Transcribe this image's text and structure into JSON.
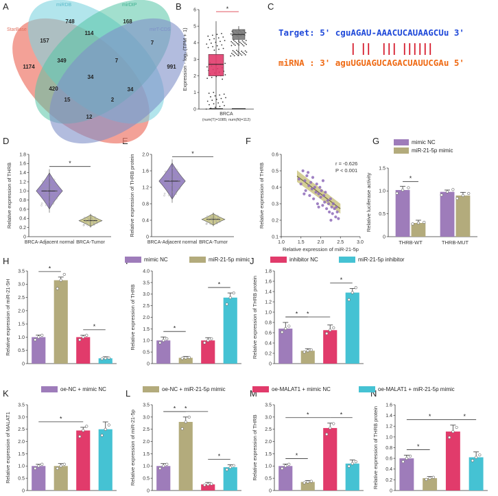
{
  "panels": {
    "A": "A",
    "B": "B",
    "C": "C",
    "D": "D",
    "E": "E",
    "F": "F",
    "G": "G",
    "H": "H",
    "I": "I",
    "J": "J",
    "K": "K",
    "L": "L",
    "M": "M",
    "N": "N"
  },
  "colors": {
    "purple": "#9e7cba",
    "olive": "#b3ab7c",
    "pink": "#e13b6b",
    "cyan": "#45c2d3",
    "venn_red": "#ee7d6f",
    "venn_cyan": "#7fd3e0",
    "venn_teal": "#55c4a6",
    "venn_blue": "#7e8fc8",
    "seq_blue": "#1f49d9",
    "seq_orange": "#ef6a14",
    "seq_red": "#d61b2c"
  },
  "venn": {
    "labels": [
      "StarBase",
      "miRDB",
      "mirDIP",
      "mirT-CDS"
    ],
    "regions": [
      {
        "value": "748"
      },
      {
        "value": "168"
      },
      {
        "value": "1174"
      },
      {
        "value": "991"
      },
      {
        "value": "157"
      },
      {
        "value": "114"
      },
      {
        "value": "7"
      },
      {
        "value": "349"
      },
      {
        "value": "7"
      },
      {
        "value": "34"
      },
      {
        "value": "420"
      },
      {
        "value": "34"
      },
      {
        "value": "15"
      },
      {
        "value": "2"
      },
      {
        "value": "12"
      }
    ]
  },
  "boxplot_B": {
    "ylabel": "Expression - log₂ (TPM + 1)",
    "yticks": [
      "0",
      "1",
      "2",
      "3",
      "4",
      "5",
      "6"
    ],
    "xlabel_1": "BRCA",
    "xlabel_2": "(num(T)=1085; num(N)=112)",
    "star": "*",
    "tumor": {
      "q1": 2.0,
      "median": 2.7,
      "q3": 3.3,
      "min": 0,
      "max": 5.3,
      "color": "#e13b6b"
    },
    "normal": {
      "q1": 4.2,
      "median": 4.5,
      "q3": 4.8,
      "min": 3.2,
      "max": 5.0,
      "color": "#7a7a7a"
    }
  },
  "sequence_C": {
    "target": "Target: 5' cguAGAU-AAACUCAUAAGCUu 3'",
    "mirna": "miRNA : 3' aguUGUAGUCAGACUAUUCGAu 5'"
  },
  "legend_row1": [
    "mimic NC",
    "miR-21-5p mimic",
    "inhibitor NC",
    "miR-21-5p inhibitor"
  ],
  "legend_row2": [
    "oe-NC + mimic NC",
    "oe-NC + miR-21-5p mimic",
    "oe-MALAT1 + mimic NC",
    "oe-MALAT1 + miR-21-5p mimic"
  ],
  "legend_G": [
    "mimic NC",
    "miR-21-5p mimic"
  ],
  "chart_data": [
    {
      "id": "D",
      "type": "violin",
      "ylabel": "Relative expression of THRB",
      "categories": [
        "BRCA-Adjacent normal",
        "BRCA-Tumor"
      ],
      "values": [
        1.0,
        0.35
      ],
      "ylim": [
        0,
        1.8
      ],
      "yticks": [
        "0",
        "0.2",
        "0.4",
        "0.6",
        "0.8",
        "1.0",
        "1.2",
        "1.4",
        "1.6",
        "1.8"
      ],
      "star": "*"
    },
    {
      "id": "E",
      "type": "violin",
      "ylabel": "Relative expression of THRB protein",
      "categories": [
        "BRCA-Adjacent normal",
        "BRCA-Tumor"
      ],
      "values": [
        1.35,
        0.42
      ],
      "ylim": [
        0,
        2.0
      ],
      "yticks": [
        "0",
        "0.4",
        "0.8",
        "1.2",
        "1.6",
        "2.0"
      ],
      "star": "*"
    },
    {
      "id": "F",
      "type": "scatter",
      "ylabel": "Relative expression of THRB",
      "xlabel": "Relative expression of miR-21-5p",
      "xlim": [
        1.0,
        3.0
      ],
      "ylim": [
        0.1,
        0.6
      ],
      "xticks": [
        "1.0",
        "1.5",
        "2.0",
        "2.5",
        "3.0"
      ],
      "yticks": [
        "0.1",
        "0.2",
        "0.3",
        "0.4",
        "0.5",
        "0.6"
      ],
      "r": "r = -0.626",
      "p": "P < 0.001",
      "points": [
        [
          1.45,
          0.45
        ],
        [
          1.5,
          0.42
        ],
        [
          1.55,
          0.5
        ],
        [
          1.6,
          0.44
        ],
        [
          1.62,
          0.38
        ],
        [
          1.65,
          0.47
        ],
        [
          1.7,
          0.41
        ],
        [
          1.72,
          0.35
        ],
        [
          1.75,
          0.43
        ],
        [
          1.78,
          0.39
        ],
        [
          1.8,
          0.46
        ],
        [
          1.82,
          0.33
        ],
        [
          1.85,
          0.4
        ],
        [
          1.88,
          0.37
        ],
        [
          1.9,
          0.42
        ],
        [
          1.92,
          0.3
        ],
        [
          1.95,
          0.36
        ],
        [
          1.98,
          0.4
        ],
        [
          2.0,
          0.34
        ],
        [
          2.02,
          0.38
        ],
        [
          2.05,
          0.29
        ],
        [
          2.08,
          0.35
        ],
        [
          2.1,
          0.31
        ],
        [
          2.12,
          0.37
        ],
        [
          2.15,
          0.27
        ],
        [
          2.18,
          0.32
        ],
        [
          2.2,
          0.3
        ],
        [
          2.22,
          0.25
        ],
        [
          2.25,
          0.33
        ],
        [
          2.28,
          0.28
        ],
        [
          2.3,
          0.24
        ],
        [
          2.32,
          0.3
        ],
        [
          2.35,
          0.27
        ],
        [
          2.38,
          0.22
        ],
        [
          2.4,
          0.28
        ],
        [
          2.42,
          0.25
        ],
        [
          2.45,
          0.21
        ],
        [
          1.58,
          0.36
        ],
        [
          1.68,
          0.49
        ],
        [
          2.06,
          0.44
        ],
        [
          1.95,
          0.28
        ],
        [
          2.26,
          0.2
        ]
      ]
    },
    {
      "id": "G",
      "type": "bar",
      "ylabel": "Relative luciferase activity",
      "categories": [
        "THRB-WT",
        "THRB-MUT"
      ],
      "ylim": [
        0,
        1.5
      ],
      "yticks": [
        "0",
        "0.5",
        "1.0",
        "1.5"
      ],
      "series": [
        {
          "name": "mimic NC",
          "values": [
            1.02,
            0.98
          ],
          "err": [
            0.08,
            0.04
          ],
          "color": "purple"
        },
        {
          "name": "miR-21-5p mimic",
          "values": [
            0.3,
            0.9
          ],
          "err": [
            0.06,
            0.07
          ],
          "color": "olive"
        }
      ],
      "sigs": [
        {
          "a": 0,
          "b": 1,
          "star": "*"
        }
      ]
    },
    {
      "id": "H",
      "type": "bar",
      "ylabel": "Relative expression of miR-21-5H",
      "ylim": [
        0,
        3.5
      ],
      "yticks": [
        "0",
        "0.5",
        "1.0",
        "1.5",
        "2.0",
        "2.5",
        "3.0",
        "3.5"
      ],
      "values": [
        1.0,
        3.15,
        1.0,
        0.2
      ],
      "err": [
        0.08,
        0.12,
        0.07,
        0.06
      ],
      "colors": [
        "purple",
        "olive",
        "pink",
        "cyan"
      ],
      "sigs": [
        {
          "a": 0,
          "b": 1,
          "star": "*"
        },
        {
          "a": 2,
          "b": 3,
          "star": "*"
        }
      ]
    },
    {
      "id": "I",
      "type": "bar",
      "ylabel": "Relative expression of THRB",
      "ylim": [
        0,
        4.0
      ],
      "yticks": [
        "0",
        "0.5",
        "1.0",
        "1.5",
        "2.0",
        "2.5",
        "3.0",
        "3.5",
        "4.0"
      ],
      "values": [
        1.0,
        0.25,
        1.0,
        2.85
      ],
      "err": [
        0.15,
        0.06,
        0.12,
        0.2
      ],
      "colors": [
        "purple",
        "olive",
        "pink",
        "cyan"
      ],
      "sigs": [
        {
          "a": 0,
          "b": 1,
          "star": "*"
        },
        {
          "a": 2,
          "b": 3,
          "star": "*"
        }
      ]
    },
    {
      "id": "J",
      "type": "bar",
      "ylabel": "Relative expression of THRB protein",
      "ylim": [
        0,
        1.8
      ],
      "yticks": [
        "0",
        "0.2",
        "0.4",
        "0.6",
        "0.8",
        "1.0",
        "1.2",
        "1.4",
        "1.6",
        "1.8"
      ],
      "values": [
        0.68,
        0.25,
        0.65,
        1.38
      ],
      "err": [
        0.12,
        0.04,
        0.1,
        0.08
      ],
      "colors": [
        "purple",
        "olive",
        "pink",
        "cyan"
      ],
      "sigs": [
        {
          "a": 0,
          "b": 1,
          "star": "*"
        },
        {
          "a": 0,
          "b": 2,
          "star": "*"
        },
        {
          "a": 2,
          "b": 3,
          "star": "*"
        }
      ]
    },
    {
      "id": "K",
      "type": "bar",
      "ylabel": "Relative expression of MALAT1",
      "ylim": [
        0,
        3.5
      ],
      "yticks": [
        "0",
        "0.5",
        "1.0",
        "1.5",
        "2.0",
        "2.5",
        "3.0",
        "3.5"
      ],
      "values": [
        1.0,
        1.0,
        2.45,
        2.5
      ],
      "err": [
        0.07,
        0.1,
        0.13,
        0.3
      ],
      "colors": [
        "purple",
        "olive",
        "pink",
        "cyan"
      ],
      "sigs": [
        {
          "a": 0,
          "b": 2,
          "star": "*"
        }
      ]
    },
    {
      "id": "L",
      "type": "bar",
      "ylabel": "Relative expression of miR-21-5p",
      "ylim": [
        0,
        3.5
      ],
      "yticks": [
        "0",
        "0.5",
        "1.0",
        "1.5",
        "2.0",
        "2.5",
        "3.0",
        "3.5"
      ],
      "values": [
        1.0,
        2.8,
        0.25,
        0.95
      ],
      "err": [
        0.1,
        0.2,
        0.08,
        0.1
      ],
      "colors": [
        "purple",
        "olive",
        "pink",
        "cyan"
      ],
      "sigs": [
        {
          "a": 0,
          "b": 1,
          "star": "*"
        },
        {
          "a": 0,
          "b": 2,
          "star": "*"
        },
        {
          "a": 2,
          "b": 3,
          "star": "*"
        }
      ]
    },
    {
      "id": "M",
      "type": "bar",
      "ylabel": "Relative expression of THRB",
      "ylim": [
        0,
        3.5
      ],
      "yticks": [
        "0",
        "0.5",
        "1.0",
        "1.5",
        "2.0",
        "2.5",
        "3.0",
        "3.5"
      ],
      "values": [
        1.0,
        0.35,
        2.55,
        1.1
      ],
      "err": [
        0.08,
        0.06,
        0.2,
        0.15
      ],
      "colors": [
        "purple",
        "olive",
        "pink",
        "cyan"
      ],
      "sigs": [
        {
          "a": 0,
          "b": 1,
          "star": "*"
        },
        {
          "a": 0,
          "b": 2,
          "star": "*"
        },
        {
          "a": 2,
          "b": 3,
          "star": "*"
        }
      ]
    },
    {
      "id": "N",
      "type": "bar",
      "ylabel": "Relative expression of THRB protein",
      "ylim": [
        0,
        1.6
      ],
      "yticks": [
        "0",
        "0.2",
        "0.4",
        "0.6",
        "0.8",
        "1.0",
        "1.2",
        "1.4",
        "1.6"
      ],
      "values": [
        0.6,
        0.23,
        1.1,
        0.62
      ],
      "err": [
        0.06,
        0.03,
        0.12,
        0.1
      ],
      "colors": [
        "purple",
        "olive",
        "pink",
        "cyan"
      ],
      "sigs": [
        {
          "a": 0,
          "b": 1,
          "star": "*"
        },
        {
          "a": 0,
          "b": 2,
          "star": "*"
        },
        {
          "a": 2,
          "b": 3,
          "star": "*"
        }
      ]
    }
  ]
}
